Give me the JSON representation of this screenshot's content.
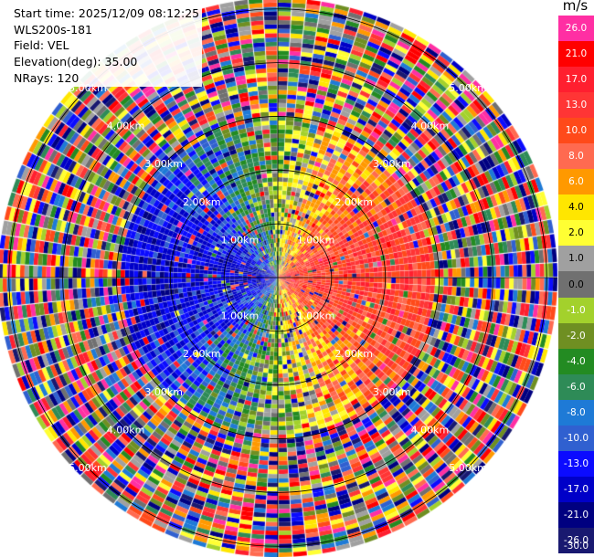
{
  "info": {
    "start_time": "Start time: 2025/12/09 08:12:25",
    "station": "WLS200s-181",
    "field": "Field: VEL",
    "elevation": "Elevation(deg): 35.00",
    "nrays": "NRays: 120"
  },
  "colorbar": {
    "title": "m/s",
    "bands": [
      {
        "label": "26.0",
        "color": "#ff2fa3"
      },
      {
        "label": "21.0",
        "color": "#ff0000"
      },
      {
        "label": "17.0",
        "color": "#ff1f2f"
      },
      {
        "label": "13.0",
        "color": "#ff3535"
      },
      {
        "label": "10.0",
        "color": "#ff4a1a"
      },
      {
        "label": "8.0",
        "color": "#ff6a50"
      },
      {
        "label": "6.0",
        "color": "#ff9900"
      },
      {
        "label": "4.0",
        "color": "#ffe600"
      },
      {
        "label": "2.0",
        "color": "#ffff33"
      },
      {
        "label": "1.0",
        "color": "#a0a0a0"
      },
      {
        "label": "0.0",
        "color": "#707070"
      },
      {
        "label": "-1.0",
        "color": "#a3d12c"
      },
      {
        "label": "-2.0",
        "color": "#6f8f22"
      },
      {
        "label": "-4.0",
        "color": "#238b22"
      },
      {
        "label": "-6.0",
        "color": "#2e8b57"
      },
      {
        "label": "-8.0",
        "color": "#1e7ad6"
      },
      {
        "label": "-10.0",
        "color": "#3060d0"
      },
      {
        "label": "-13.0",
        "color": "#0b0bff"
      },
      {
        "label": "-17.0",
        "color": "#0000c8"
      },
      {
        "label": "-21.0",
        "color": "#000080"
      },
      {
        "label": "-26.0",
        "color": "#191970"
      }
    ],
    "bottom_label": "-30.0"
  },
  "chart_data": {
    "type": "ppi",
    "field": "VEL",
    "units": "m/s",
    "nrays": 120,
    "elevation_deg": 35.0,
    "range_rings_km": [
      "1.00km",
      "2.00km",
      "3.00km",
      "4.00km",
      "5.00km"
    ],
    "range_rings_km_values": [
      1,
      2,
      3,
      4,
      5
    ],
    "max_range_km": 5.2,
    "ring_label_azimuths_deg": [
      45,
      135,
      225,
      315
    ],
    "vmin": -30.0,
    "vmax": 30.0,
    "velocity_pattern": {
      "description_of_dominant_near_field": "negative (blue/green) toward west, positive (orange/red) toward east",
      "near_field_cutoff_km": 2.9,
      "far_field": "noisy, random across full colour scale"
    }
  }
}
